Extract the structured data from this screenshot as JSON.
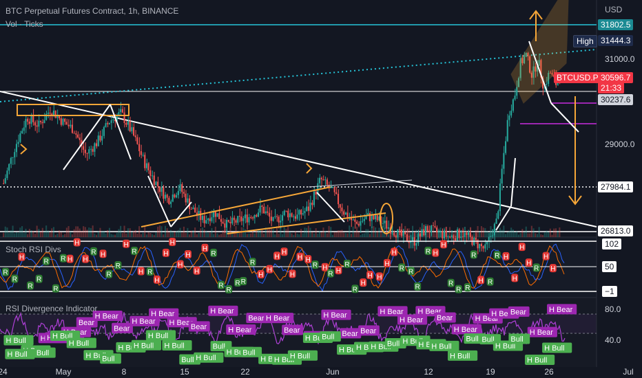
{
  "header": {
    "title": "BTC Perpetual Futures Contract, 1h, BINANCE",
    "sub": "Vol · Ticks"
  },
  "currency": "USD",
  "colors": {
    "background": "#131722",
    "up": "#26a69a",
    "down": "#ef5350",
    "trendline": "#ffffff",
    "orange": "#f7a738",
    "teal_line": "#26c6da",
    "purple": "#9c27b0",
    "high_tag": "#1e2b4a",
    "current_tag": "#f23645",
    "r_marker": "#2e7d32",
    "h_marker": "#e53935",
    "bull_tag": "#4caf50",
    "bear_tag": "#9c27b0"
  },
  "price_tags": {
    "top_line": "31802.5",
    "high_label": "High",
    "high_value": "31444.3",
    "current_symbol": "BTCUSD.P",
    "current_value": "30596.7",
    "countdown": "21:33",
    "purple_level": "30237.6",
    "dotted_level": "27984.1",
    "low_level": "26813.0"
  },
  "panes": {
    "stoch": {
      "label": "Stoch RSI Divs",
      "marker_r": "R",
      "marker_h": "H",
      "levels": [
        "102",
        "50",
        "−1"
      ]
    },
    "rsi_div": {
      "label": "RSI Divergence Indicator",
      "levels": [
        "80.0",
        "40.0"
      ],
      "bear_tags": [
        "H Bear",
        "H Bear",
        "Bear",
        "H Bear",
        "Bear",
        "H Bear",
        "H Bear",
        "H Bear",
        "Bear",
        "H Bear",
        "H Bear",
        "Bear",
        "H Bear",
        "Bear",
        "H Bear",
        "H Bear",
        "Bear",
        "Bear",
        "H Bear",
        "H Bear",
        "H Bear",
        "Bear",
        "H Bear",
        "H Bear",
        "H Bear",
        "Bear",
        "H Bear",
        "H Bear",
        "H Bear",
        "H Bear"
      ],
      "bull_tags": [
        "H Bull",
        "H Bull",
        "Bull",
        "H Bull",
        "H Bull",
        "H Bull",
        "Bull",
        "H Bull",
        "H Bull",
        "H Bull",
        "H Bull",
        "Bull",
        "H Bull",
        "Bull",
        "H Bull",
        "Bull",
        "H Bull",
        "H Bull",
        "H Bull",
        "H Bull",
        "Bull",
        "H Bull",
        "H Bull",
        "H Bull",
        "Bull",
        "H Bull",
        "H Bull",
        "H Bull",
        "H Bull",
        "Bull",
        "Bull",
        "H Bull",
        "Bull",
        "H Bull",
        "H Bull",
        "H Bull"
      ]
    }
  },
  "chart_data": {
    "type": "candlestick",
    "title": "BTC Perpetual Futures Contract, 1h, BINANCE",
    "x_ticks": [
      "24",
      "May",
      "8",
      "15",
      "22",
      "Jun",
      "12",
      "19",
      "26",
      "Jul"
    ],
    "y_ticks": [
      "31000.0",
      "29000.0"
    ],
    "y_range": [
      26600,
      32300
    ],
    "close_path": [
      [
        0,
        27900
      ],
      [
        2,
        28800
      ],
      [
        4,
        29500
      ],
      [
        6,
        29300
      ],
      [
        8,
        29700
      ],
      [
        10,
        29400
      ],
      [
        12,
        29200
      ],
      [
        14,
        28600
      ],
      [
        16,
        28900
      ],
      [
        18,
        29400
      ],
      [
        20,
        29600
      ],
      [
        22,
        29100
      ],
      [
        24,
        28400
      ],
      [
        26,
        27900
      ],
      [
        28,
        27500
      ],
      [
        30,
        27800
      ],
      [
        32,
        27300
      ],
      [
        34,
        27000
      ],
      [
        36,
        27200
      ],
      [
        38,
        26900
      ],
      [
        40,
        27000
      ],
      [
        42,
        27100
      ],
      [
        44,
        27300
      ],
      [
        46,
        26950
      ],
      [
        48,
        27200
      ],
      [
        50,
        27100
      ],
      [
        52,
        27300
      ],
      [
        54,
        28000
      ],
      [
        56,
        27700
      ],
      [
        58,
        27200
      ],
      [
        60,
        26900
      ],
      [
        62,
        27100
      ],
      [
        64,
        27000
      ],
      [
        66,
        26800
      ],
      [
        68,
        26600
      ],
      [
        70,
        26500
      ],
      [
        72,
        26800
      ],
      [
        74,
        26700
      ],
      [
        76,
        26600
      ],
      [
        78,
        26700
      ],
      [
        80,
        26500
      ],
      [
        82,
        26300
      ],
      [
        84,
        27000
      ],
      [
        85,
        28400
      ],
      [
        86,
        29600
      ],
      [
        87,
        30000
      ],
      [
        88,
        30800
      ],
      [
        89,
        31000
      ],
      [
        90,
        30500
      ],
      [
        91,
        30900
      ],
      [
        92,
        30200
      ],
      [
        93,
        30600
      ],
      [
        94,
        30300
      ],
      [
        95,
        30597
      ]
    ],
    "series": [
      {
        "name": "Vol · Ticks",
        "values": [
          10,
          22,
          15,
          30,
          12,
          18,
          25,
          14,
          9,
          20,
          16,
          28,
          11,
          19,
          24,
          13,
          17,
          8,
          21,
          15,
          26,
          12,
          18,
          14,
          30,
          20,
          10,
          16,
          22,
          35
        ]
      }
    ]
  }
}
